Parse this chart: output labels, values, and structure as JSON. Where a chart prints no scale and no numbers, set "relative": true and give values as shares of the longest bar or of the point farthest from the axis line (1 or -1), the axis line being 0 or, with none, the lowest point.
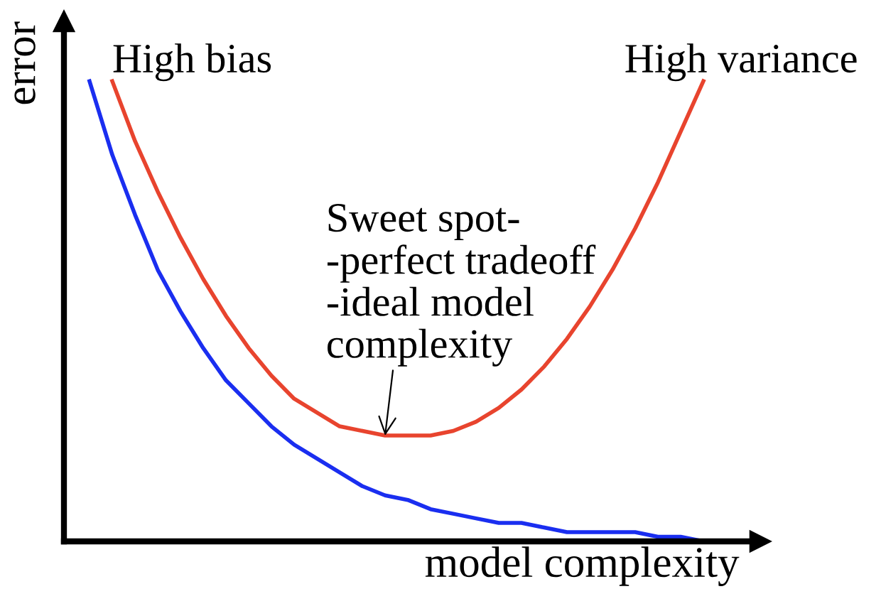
{
  "chart_data": {
    "type": "line",
    "relative": true,
    "xlabel": "model complexity",
    "ylabel": "error",
    "categories": [
      null,
      null,
      null,
      null,
      null,
      null,
      null,
      null,
      null,
      null,
      null,
      null,
      null,
      null,
      null,
      null,
      null,
      null,
      null,
      null,
      null,
      null,
      null,
      null,
      null,
      null,
      null,
      null
    ],
    "series": [
      {
        "color": "#1a2ef0",
        "values": [
          1.0,
          0.84,
          0.71,
          0.59,
          0.5,
          0.42,
          0.35,
          0.3,
          0.25,
          0.21,
          0.18,
          0.15,
          0.12,
          0.1,
          0.09,
          0.07,
          0.06,
          0.05,
          0.04,
          0.04,
          0.03,
          0.02,
          0.02,
          0.02,
          0.02,
          0.01,
          0.01,
          0.0
        ]
      },
      {
        "color": "#e8442e",
        "values": [
          null,
          1.0,
          0.87,
          0.76,
          0.66,
          0.57,
          0.49,
          0.42,
          0.36,
          0.31,
          0.28,
          0.25,
          0.24,
          0.23,
          0.23,
          0.23,
          0.24,
          0.26,
          0.29,
          0.33,
          0.38,
          0.44,
          0.51,
          0.59,
          0.68,
          0.78,
          0.89,
          1.0
        ]
      }
    ],
    "annotations": [
      "High bias",
      "High variance",
      "Sweet spot-\n-perfect tradeoff\n-ideal model\ncomplexity"
    ],
    "legend": false,
    "marker": "none",
    "line_style": "solid"
  }
}
